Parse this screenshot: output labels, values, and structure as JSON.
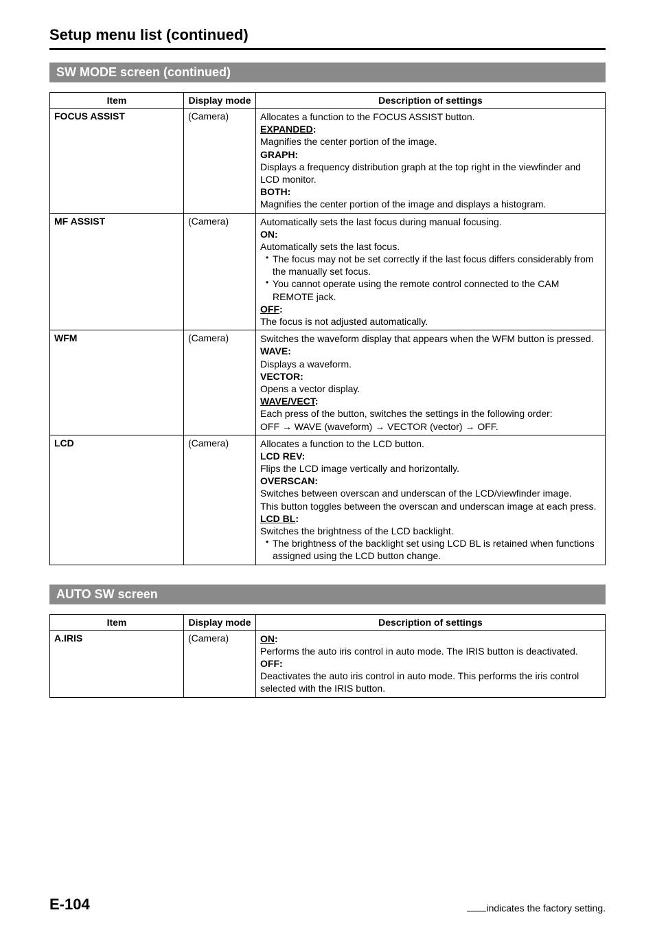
{
  "page": {
    "title": "Setup menu list (continued)",
    "number": "E-104",
    "factory_note_prefix": "",
    "factory_note_text": "indicates the factory setting."
  },
  "sections": [
    {
      "bar": "SW MODE screen (continued)"
    },
    {
      "bar": "AUTO SW screen"
    }
  ],
  "headers": {
    "item": "Item",
    "mode": "Display mode",
    "desc": "Description of settings"
  },
  "sw_mode_rows": [
    {
      "item": "FOCUS ASSIST",
      "mode": "(Camera)",
      "desc": {
        "intro": "Allocates a function to the FOCUS ASSIST button.",
        "opts": [
          {
            "head": "EXPANDED:",
            "underline": true,
            "text": "Magnifies the center portion of the image."
          },
          {
            "head": "GRAPH:",
            "text": "Displays a frequency distribution graph at the top right in the viewfinder and LCD monitor."
          },
          {
            "head": "BOTH:",
            "text": "Magnifies the center portion of the image and displays a histogram."
          }
        ]
      }
    },
    {
      "item": "MF ASSIST",
      "mode": "(Camera)",
      "desc": {
        "intro": "Automatically sets the last focus during manual focusing.",
        "opts": [
          {
            "head": "ON:",
            "text": "Automatically sets the last focus.",
            "bullets": [
              "The focus may not be set correctly if the last focus differs considerably from the manually set focus.",
              "You cannot operate using the remote control connected to the CAM REMOTE jack."
            ]
          },
          {
            "head": "OFF:",
            "underline": true,
            "text": "The focus is not adjusted automatically."
          }
        ]
      }
    },
    {
      "item": "WFM",
      "mode": "(Camera)",
      "desc": {
        "intro": "Switches the waveform display that appears when the WFM button is pressed.",
        "opts": [
          {
            "head": "WAVE:",
            "text": "Displays a waveform."
          },
          {
            "head": "VECTOR:",
            "text": "Opens a vector display."
          },
          {
            "head": "WAVE/VECT:",
            "underline": true,
            "text": "Each press of the button, switches the settings in the following order:\nOFF → WAVE (waveform) → VECTOR (vector) → OFF."
          }
        ]
      }
    },
    {
      "item": "LCD",
      "mode": "(Camera)",
      "desc": {
        "intro": "Allocates a function to the LCD button.",
        "opts": [
          {
            "head": "LCD REV:",
            "text": "Flips the LCD image vertically and horizontally."
          },
          {
            "head": "OVERSCAN:",
            "text": "Switches between overscan and underscan of the LCD/viewfinder image.\nThis button toggles between the overscan and underscan image at each press."
          },
          {
            "head": "LCD BL:",
            "underline": true,
            "text": "Switches the brightness of the LCD backlight.",
            "bullets": [
              "The brightness of the backlight set using LCD BL is retained when functions assigned using the LCD button change."
            ]
          }
        ]
      }
    }
  ],
  "auto_sw_rows": [
    {
      "item": "A.IRIS",
      "mode": "(Camera)",
      "desc": {
        "opts": [
          {
            "head": "ON:",
            "underline": true,
            "text": "Performs the auto iris control in auto mode. The IRIS button is deactivated."
          },
          {
            "head": "OFF:",
            "text": "Deactivates the auto iris control in auto mode. This performs the iris control selected with the IRIS button."
          }
        ]
      }
    }
  ]
}
